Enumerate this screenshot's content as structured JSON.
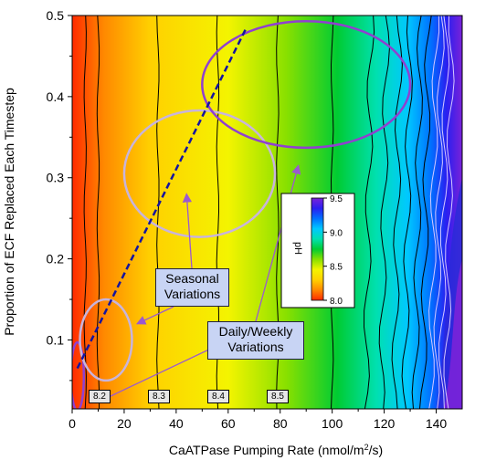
{
  "chart_data": {
    "type": "heatmap",
    "title": "",
    "xlabel": "CaATPase Pumping Rate (nmol/m²/s)",
    "ylabel": "Proportion of ECF Replaced Each Timestep",
    "xlim": [
      0,
      150
    ],
    "ylim": [
      0.015,
      0.5
    ],
    "x_ticks": [
      0,
      20,
      40,
      60,
      80,
      100,
      120,
      140
    ],
    "x_tick_labels": [
      "0",
      "20",
      "40",
      "60",
      "80",
      "100",
      "120",
      "140"
    ],
    "y_ticks": [
      0.1,
      0.2,
      0.3,
      0.4,
      0.5
    ],
    "y_tick_labels": [
      "0.1",
      "0.2",
      "0.3",
      "0.4",
      "0.5"
    ],
    "colorbar": {
      "label": "pH",
      "range": [
        8.0,
        9.5
      ],
      "ticks": [
        8.0,
        8.5,
        9.0,
        9.5
      ],
      "tick_labels": [
        "8.0",
        "8.5",
        "9.0",
        "9.5"
      ],
      "colormap": [
        "#ff2a00",
        "#ff8800",
        "#ffd000",
        "#f4f400",
        "#88e000",
        "#00cc33",
        "#00e0b0",
        "#00c8ff",
        "#0070ff",
        "#2a1ff0",
        "#7a22d8"
      ]
    },
    "contour_labels": [
      {
        "label": "8.2",
        "x": 10,
        "y": 0.035
      },
      {
        "label": "8.3",
        "x": 33,
        "y": 0.035
      },
      {
        "label": "8.4",
        "x": 56,
        "y": 0.035
      },
      {
        "label": "8.5",
        "x": 79,
        "y": 0.035
      }
    ],
    "contour_x_positions": [
      5,
      10,
      33,
      56,
      79,
      100,
      115,
      121,
      126,
      130,
      134,
      137,
      140,
      142,
      144,
      146
    ],
    "trend_line": {
      "x": [
        2,
        67
      ],
      "y": [
        0.065,
        0.485
      ],
      "style": "dashed",
      "color": "#1414a0"
    },
    "ellipses": [
      {
        "name": "ellipse-origin",
        "cx": 2,
        "cy": 0.055,
        "rx": 2.5,
        "ry": 0.042,
        "color": "#9040d0"
      },
      {
        "name": "ellipse-small",
        "cx": 13,
        "cy": 0.1,
        "rx": 10,
        "ry": 0.05,
        "color": "#c8b4dc"
      },
      {
        "name": "ellipse-medium",
        "cx": 49,
        "cy": 0.305,
        "rx": 29,
        "ry": 0.078,
        "color": "#c8b4dc"
      },
      {
        "name": "ellipse-large",
        "cx": 90,
        "cy": 0.415,
        "rx": 40,
        "ry": 0.078,
        "color": "#9040d0"
      }
    ],
    "annotations": [
      {
        "name": "seasonal-variations-box",
        "lines": [
          "Seasonal",
          "Variations"
        ]
      },
      {
        "name": "daily-weekly-variations-box",
        "lines": [
          "Daily/Weekly",
          "Variations"
        ]
      }
    ],
    "arrows": [
      {
        "from": "seasonal",
        "to_x": 44,
        "to_y": 0.28
      },
      {
        "from": "seasonal",
        "to_x": 25,
        "to_y": 0.12
      },
      {
        "from": "daily",
        "to_x": 87,
        "to_y": 0.315
      },
      {
        "from": "daily",
        "to_x": 11,
        "to_y": 0.025
      }
    ]
  }
}
